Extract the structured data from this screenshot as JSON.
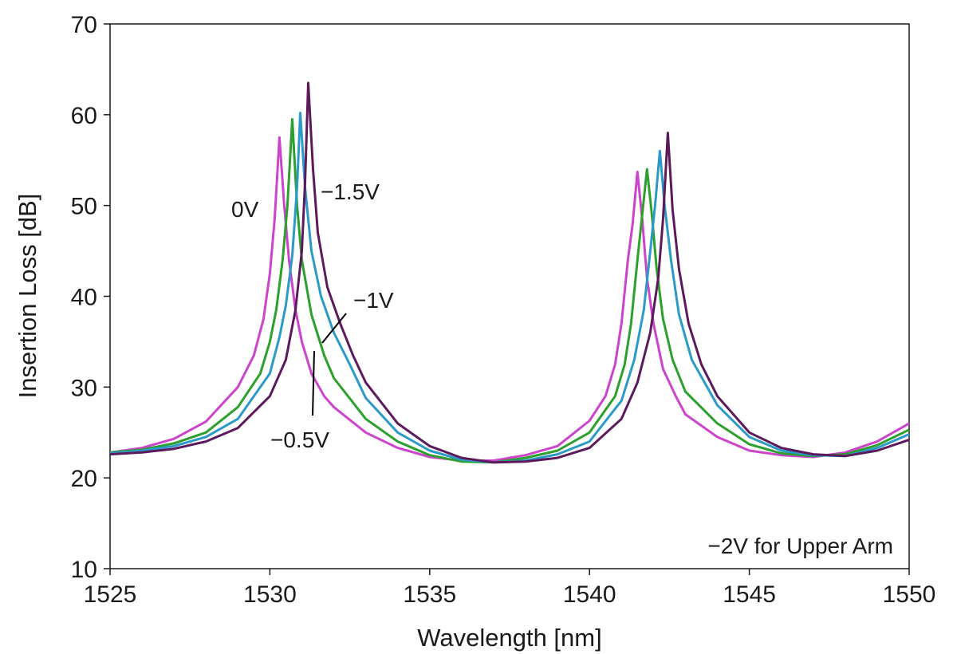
{
  "chart_data": {
    "type": "line",
    "title": "",
    "xlabel": "Wavelength [nm]",
    "ylabel": "Insertion Loss [dB]",
    "xlim": [
      1525,
      1550
    ],
    "ylim": [
      10,
      70
    ],
    "xticks": [
      1525,
      1530,
      1535,
      1540,
      1545,
      1550
    ],
    "yticks": [
      10,
      20,
      30,
      40,
      50,
      60,
      70
    ],
    "xtick_labels": [
      "1525",
      "1530",
      "1535",
      "1540",
      "1545",
      "1550"
    ],
    "ytick_labels": [
      "10",
      "20",
      "30",
      "40",
      "50",
      "60",
      "70"
    ],
    "grid": false,
    "legend": "none",
    "annotation": "−2V for Upper Arm",
    "series": [
      {
        "name": "0V",
        "color": "#cc44cc",
        "x": [
          1525,
          1526,
          1527,
          1528,
          1529,
          1529.5,
          1529.8,
          1530.0,
          1530.15,
          1530.3,
          1530.45,
          1530.6,
          1530.8,
          1531.0,
          1531.3,
          1531.7,
          1532,
          1533,
          1534,
          1535,
          1536,
          1537,
          1538,
          1539,
          1540,
          1540.5,
          1540.8,
          1541.0,
          1541.2,
          1541.35,
          1541.5,
          1541.65,
          1541.8,
          1542.0,
          1542.3,
          1542.7,
          1543,
          1544,
          1545,
          1546,
          1547,
          1548,
          1549,
          1550
        ],
        "y": [
          22.8,
          23.3,
          24.3,
          26.2,
          30.0,
          33.5,
          37.5,
          42.5,
          48.5,
          57.5,
          50.0,
          44.0,
          38.5,
          35.0,
          31.5,
          29.0,
          27.8,
          25.0,
          23.3,
          22.3,
          21.9,
          21.9,
          22.5,
          23.5,
          26.3,
          29.0,
          32.5,
          37.0,
          44.0,
          48.0,
          53.7,
          48.5,
          42.0,
          37.0,
          32.0,
          29.0,
          27.0,
          24.5,
          23.0,
          22.5,
          22.3,
          22.8,
          24.0,
          26.0
        ]
      },
      {
        "name": "−0.5V",
        "color": "#2ca02c",
        "x": [
          1525,
          1526,
          1527,
          1528,
          1529,
          1529.7,
          1530.0,
          1530.2,
          1530.4,
          1530.55,
          1530.7,
          1530.85,
          1531.0,
          1531.3,
          1531.7,
          1532,
          1533,
          1534,
          1535,
          1536,
          1537,
          1538,
          1539,
          1540,
          1540.8,
          1541.1,
          1541.3,
          1541.5,
          1541.65,
          1541.8,
          1541.95,
          1542.1,
          1542.3,
          1542.6,
          1543,
          1544,
          1545,
          1546,
          1547,
          1548,
          1549,
          1550
        ],
        "y": [
          22.8,
          23.1,
          23.8,
          25.0,
          27.8,
          31.5,
          35.0,
          38.5,
          44.0,
          50.0,
          59.5,
          50.0,
          44.0,
          38.0,
          33.5,
          31.0,
          26.5,
          24.0,
          22.5,
          21.8,
          21.7,
          22.2,
          23.0,
          25.0,
          29.0,
          32.5,
          37.0,
          44.0,
          49.0,
          54.0,
          49.0,
          43.0,
          37.5,
          33.0,
          29.5,
          26.0,
          23.7,
          22.7,
          22.4,
          22.6,
          23.6,
          25.3
        ]
      },
      {
        "name": "−1V",
        "color": "#2b9ac8",
        "x": [
          1525,
          1526,
          1527,
          1528,
          1529,
          1530.0,
          1530.3,
          1530.5,
          1530.7,
          1530.85,
          1530.95,
          1531.1,
          1531.3,
          1531.6,
          1532,
          1532.5,
          1533,
          1534,
          1535,
          1536,
          1537,
          1538,
          1539,
          1540,
          1541,
          1541.4,
          1541.7,
          1541.9,
          1542.05,
          1542.2,
          1542.35,
          1542.55,
          1542.8,
          1543.2,
          1544,
          1545,
          1546,
          1547,
          1548,
          1549,
          1550
        ],
        "y": [
          22.7,
          23.0,
          23.5,
          24.5,
          26.5,
          31.5,
          35.5,
          39.0,
          44.5,
          52.0,
          60.2,
          52.0,
          45.0,
          40.0,
          36.0,
          32.5,
          28.8,
          25.0,
          23.0,
          22.0,
          21.7,
          21.9,
          22.6,
          24.0,
          28.5,
          33.0,
          38.5,
          45.0,
          50.0,
          56.0,
          50.0,
          44.0,
          38.0,
          33.0,
          28.0,
          24.5,
          23.0,
          22.5,
          22.4,
          23.3,
          24.8
        ]
      },
      {
        "name": "−1.5V",
        "color": "#5c1a5c",
        "x": [
          1525,
          1526,
          1527,
          1528,
          1529,
          1530.0,
          1530.5,
          1530.8,
          1531.0,
          1531.1,
          1531.2,
          1531.35,
          1531.5,
          1531.8,
          1532.2,
          1532.6,
          1533,
          1534,
          1535,
          1536,
          1537,
          1538,
          1539,
          1540,
          1541,
          1541.5,
          1541.9,
          1542.15,
          1542.3,
          1542.45,
          1542.6,
          1542.8,
          1543.1,
          1543.5,
          1544,
          1545,
          1546,
          1547,
          1548,
          1549,
          1550
        ],
        "y": [
          22.6,
          22.8,
          23.2,
          24.0,
          25.5,
          29.0,
          33.0,
          38.5,
          45.0,
          52.5,
          63.5,
          54.0,
          47.0,
          41.0,
          37.0,
          33.5,
          30.5,
          26.0,
          23.5,
          22.2,
          21.7,
          21.8,
          22.2,
          23.3,
          26.5,
          30.5,
          36.0,
          42.0,
          48.5,
          58.0,
          49.5,
          43.0,
          37.0,
          32.5,
          29.0,
          25.0,
          23.3,
          22.6,
          22.4,
          23.0,
          24.2
        ]
      }
    ],
    "series_labels": {
      "0V": "0V",
      "neg05": "−0.5V",
      "neg1": "−1V",
      "neg15": "−1.5V"
    }
  }
}
